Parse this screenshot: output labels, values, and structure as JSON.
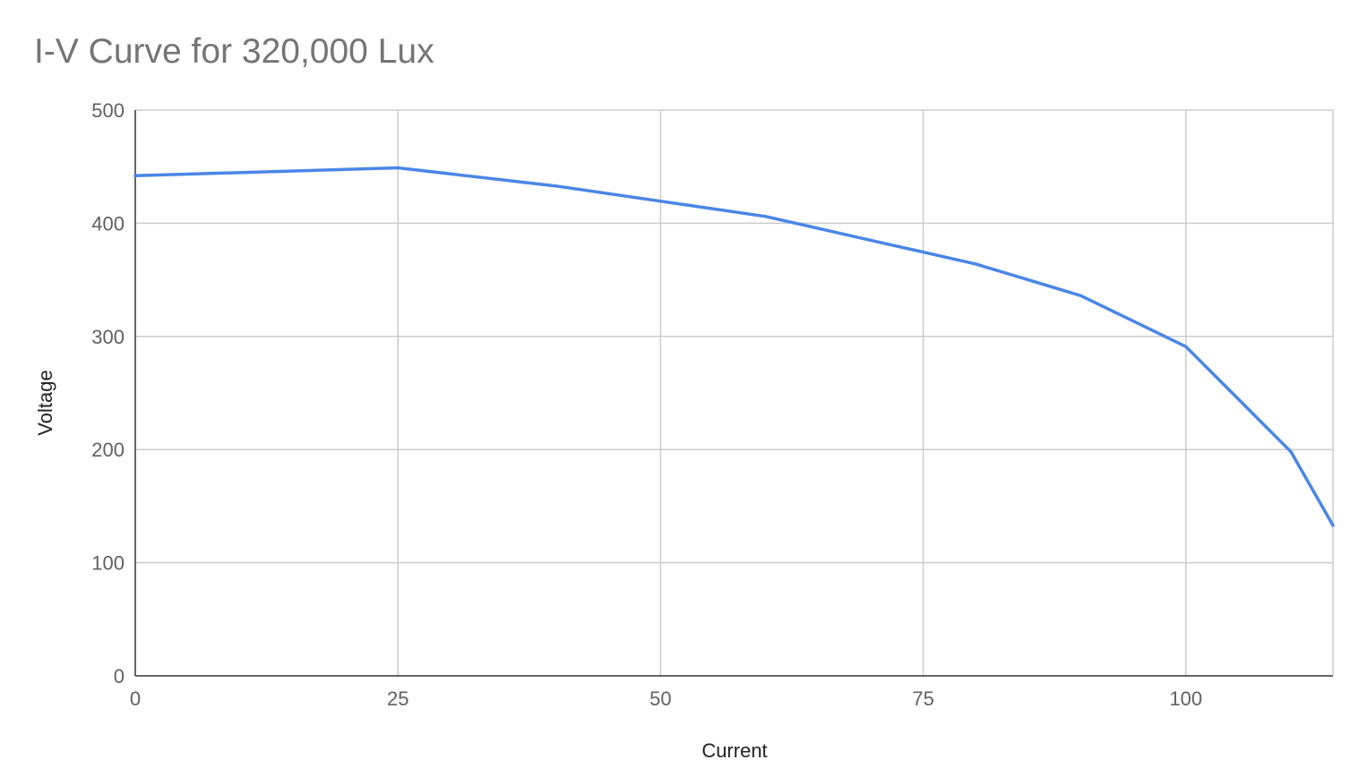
{
  "chart_data": {
    "type": "line",
    "title": "I-V Curve for 320,000 Lux",
    "xlabel": "Current",
    "ylabel": "Voltage",
    "xlim": [
      0,
      114
    ],
    "ylim": [
      0,
      500
    ],
    "x_ticks": [
      0,
      25,
      50,
      75,
      100
    ],
    "y_ticks": [
      0,
      100,
      200,
      300,
      400,
      500
    ],
    "grid": true,
    "legend": "none",
    "series": [
      {
        "color": "#4a86e8",
        "x": [
          0,
          25,
          40,
          60,
          70,
          80,
          90,
          100,
          110,
          114
        ],
        "y": [
          442,
          449,
          433,
          406,
          385,
          364,
          336,
          291,
          198,
          133
        ]
      }
    ]
  }
}
